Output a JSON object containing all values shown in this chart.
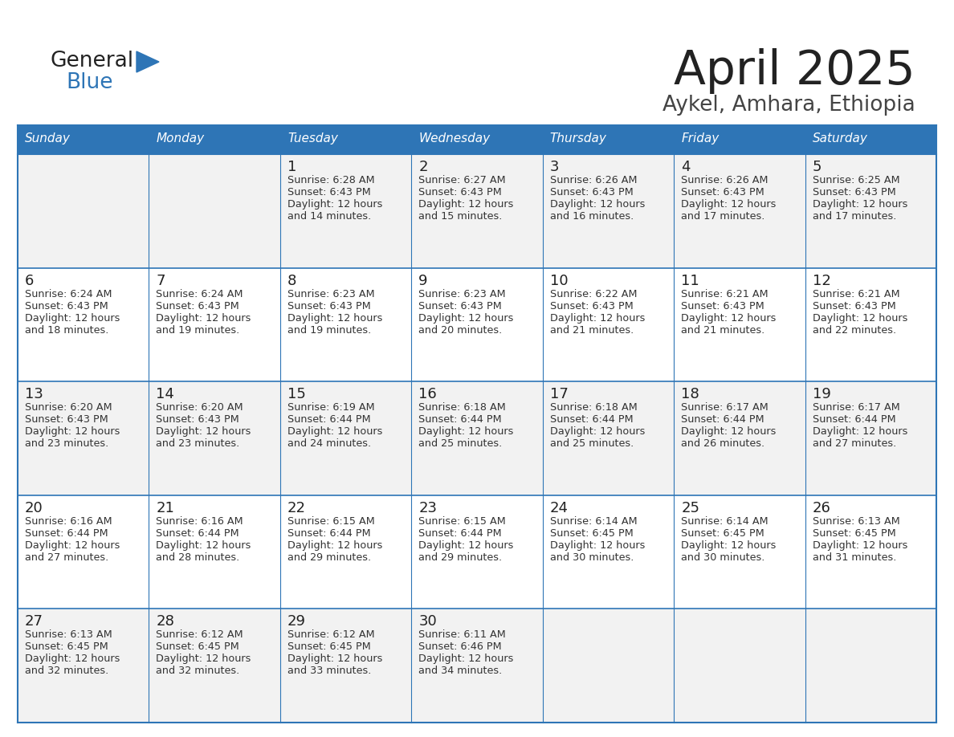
{
  "title": "April 2025",
  "subtitle": "Aykel, Amhara, Ethiopia",
  "header_color": "#2E75B6",
  "header_text_color": "#FFFFFF",
  "days_of_week": [
    "Sunday",
    "Monday",
    "Tuesday",
    "Wednesday",
    "Thursday",
    "Friday",
    "Saturday"
  ],
  "row_bg_colors": [
    "#F2F2F2",
    "#FFFFFF"
  ],
  "cell_border_color": "#2E75B6",
  "cell_border_color_light": "#B8CCE4",
  "title_color": "#222222",
  "subtitle_color": "#444444",
  "logo_general_color": "#222222",
  "logo_blue_color": "#2E75B6",
  "logo_triangle_color": "#2E75B6",
  "calendar_data": [
    [
      {
        "day": "",
        "sunrise": "",
        "sunset": "",
        "daylight1": "",
        "daylight2": ""
      },
      {
        "day": "",
        "sunrise": "",
        "sunset": "",
        "daylight1": "",
        "daylight2": ""
      },
      {
        "day": "1",
        "sunrise": "Sunrise: 6:28 AM",
        "sunset": "Sunset: 6:43 PM",
        "daylight1": "Daylight: 12 hours",
        "daylight2": "and 14 minutes."
      },
      {
        "day": "2",
        "sunrise": "Sunrise: 6:27 AM",
        "sunset": "Sunset: 6:43 PM",
        "daylight1": "Daylight: 12 hours",
        "daylight2": "and 15 minutes."
      },
      {
        "day": "3",
        "sunrise": "Sunrise: 6:26 AM",
        "sunset": "Sunset: 6:43 PM",
        "daylight1": "Daylight: 12 hours",
        "daylight2": "and 16 minutes."
      },
      {
        "day": "4",
        "sunrise": "Sunrise: 6:26 AM",
        "sunset": "Sunset: 6:43 PM",
        "daylight1": "Daylight: 12 hours",
        "daylight2": "and 17 minutes."
      },
      {
        "day": "5",
        "sunrise": "Sunrise: 6:25 AM",
        "sunset": "Sunset: 6:43 PM",
        "daylight1": "Daylight: 12 hours",
        "daylight2": "and 17 minutes."
      }
    ],
    [
      {
        "day": "6",
        "sunrise": "Sunrise: 6:24 AM",
        "sunset": "Sunset: 6:43 PM",
        "daylight1": "Daylight: 12 hours",
        "daylight2": "and 18 minutes."
      },
      {
        "day": "7",
        "sunrise": "Sunrise: 6:24 AM",
        "sunset": "Sunset: 6:43 PM",
        "daylight1": "Daylight: 12 hours",
        "daylight2": "and 19 minutes."
      },
      {
        "day": "8",
        "sunrise": "Sunrise: 6:23 AM",
        "sunset": "Sunset: 6:43 PM",
        "daylight1": "Daylight: 12 hours",
        "daylight2": "and 19 minutes."
      },
      {
        "day": "9",
        "sunrise": "Sunrise: 6:23 AM",
        "sunset": "Sunset: 6:43 PM",
        "daylight1": "Daylight: 12 hours",
        "daylight2": "and 20 minutes."
      },
      {
        "day": "10",
        "sunrise": "Sunrise: 6:22 AM",
        "sunset": "Sunset: 6:43 PM",
        "daylight1": "Daylight: 12 hours",
        "daylight2": "and 21 minutes."
      },
      {
        "day": "11",
        "sunrise": "Sunrise: 6:21 AM",
        "sunset": "Sunset: 6:43 PM",
        "daylight1": "Daylight: 12 hours",
        "daylight2": "and 21 minutes."
      },
      {
        "day": "12",
        "sunrise": "Sunrise: 6:21 AM",
        "sunset": "Sunset: 6:43 PM",
        "daylight1": "Daylight: 12 hours",
        "daylight2": "and 22 minutes."
      }
    ],
    [
      {
        "day": "13",
        "sunrise": "Sunrise: 6:20 AM",
        "sunset": "Sunset: 6:43 PM",
        "daylight1": "Daylight: 12 hours",
        "daylight2": "and 23 minutes."
      },
      {
        "day": "14",
        "sunrise": "Sunrise: 6:20 AM",
        "sunset": "Sunset: 6:43 PM",
        "daylight1": "Daylight: 12 hours",
        "daylight2": "and 23 minutes."
      },
      {
        "day": "15",
        "sunrise": "Sunrise: 6:19 AM",
        "sunset": "Sunset: 6:44 PM",
        "daylight1": "Daylight: 12 hours",
        "daylight2": "and 24 minutes."
      },
      {
        "day": "16",
        "sunrise": "Sunrise: 6:18 AM",
        "sunset": "Sunset: 6:44 PM",
        "daylight1": "Daylight: 12 hours",
        "daylight2": "and 25 minutes."
      },
      {
        "day": "17",
        "sunrise": "Sunrise: 6:18 AM",
        "sunset": "Sunset: 6:44 PM",
        "daylight1": "Daylight: 12 hours",
        "daylight2": "and 25 minutes."
      },
      {
        "day": "18",
        "sunrise": "Sunrise: 6:17 AM",
        "sunset": "Sunset: 6:44 PM",
        "daylight1": "Daylight: 12 hours",
        "daylight2": "and 26 minutes."
      },
      {
        "day": "19",
        "sunrise": "Sunrise: 6:17 AM",
        "sunset": "Sunset: 6:44 PM",
        "daylight1": "Daylight: 12 hours",
        "daylight2": "and 27 minutes."
      }
    ],
    [
      {
        "day": "20",
        "sunrise": "Sunrise: 6:16 AM",
        "sunset": "Sunset: 6:44 PM",
        "daylight1": "Daylight: 12 hours",
        "daylight2": "and 27 minutes."
      },
      {
        "day": "21",
        "sunrise": "Sunrise: 6:16 AM",
        "sunset": "Sunset: 6:44 PM",
        "daylight1": "Daylight: 12 hours",
        "daylight2": "and 28 minutes."
      },
      {
        "day": "22",
        "sunrise": "Sunrise: 6:15 AM",
        "sunset": "Sunset: 6:44 PM",
        "daylight1": "Daylight: 12 hours",
        "daylight2": "and 29 minutes."
      },
      {
        "day": "23",
        "sunrise": "Sunrise: 6:15 AM",
        "sunset": "Sunset: 6:44 PM",
        "daylight1": "Daylight: 12 hours",
        "daylight2": "and 29 minutes."
      },
      {
        "day": "24",
        "sunrise": "Sunrise: 6:14 AM",
        "sunset": "Sunset: 6:45 PM",
        "daylight1": "Daylight: 12 hours",
        "daylight2": "and 30 minutes."
      },
      {
        "day": "25",
        "sunrise": "Sunrise: 6:14 AM",
        "sunset": "Sunset: 6:45 PM",
        "daylight1": "Daylight: 12 hours",
        "daylight2": "and 30 minutes."
      },
      {
        "day": "26",
        "sunrise": "Sunrise: 6:13 AM",
        "sunset": "Sunset: 6:45 PM",
        "daylight1": "Daylight: 12 hours",
        "daylight2": "and 31 minutes."
      }
    ],
    [
      {
        "day": "27",
        "sunrise": "Sunrise: 6:13 AM",
        "sunset": "Sunset: 6:45 PM",
        "daylight1": "Daylight: 12 hours",
        "daylight2": "and 32 minutes."
      },
      {
        "day": "28",
        "sunrise": "Sunrise: 6:12 AM",
        "sunset": "Sunset: 6:45 PM",
        "daylight1": "Daylight: 12 hours",
        "daylight2": "and 32 minutes."
      },
      {
        "day": "29",
        "sunrise": "Sunrise: 6:12 AM",
        "sunset": "Sunset: 6:45 PM",
        "daylight1": "Daylight: 12 hours",
        "daylight2": "and 33 minutes."
      },
      {
        "day": "30",
        "sunrise": "Sunrise: 6:11 AM",
        "sunset": "Sunset: 6:46 PM",
        "daylight1": "Daylight: 12 hours",
        "daylight2": "and 34 minutes."
      },
      {
        "day": "",
        "sunrise": "",
        "sunset": "",
        "daylight1": "",
        "daylight2": ""
      },
      {
        "day": "",
        "sunrise": "",
        "sunset": "",
        "daylight1": "",
        "daylight2": ""
      },
      {
        "day": "",
        "sunrise": "",
        "sunset": "",
        "daylight1": "",
        "daylight2": ""
      }
    ]
  ]
}
